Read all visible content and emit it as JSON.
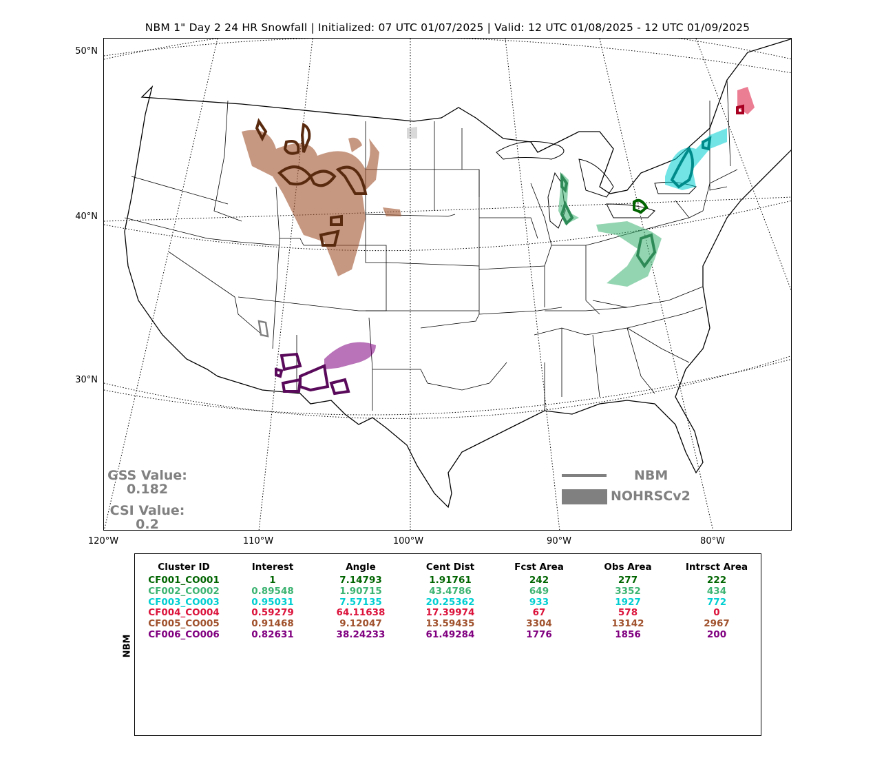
{
  "title": "NBM 1\" Day 2 24 HR Snowfall | Initialized: 07 UTC 01/07/2025 | Valid: 12 UTC 01/08/2025 - 12 UTC 01/09/2025",
  "lat_labels": [
    "50°N",
    "40°N",
    "30°N"
  ],
  "lon_labels": [
    "120°W",
    "110°W",
    "100°W",
    "90°W",
    "80°W"
  ],
  "scores": {
    "gss_label": "GSS Value:",
    "gss_value": "0.182",
    "csi_label": "CSI Value:",
    "csi_value": "0.2"
  },
  "legend": {
    "forecast_label": "NBM",
    "observed_label": "NOHRSCv2",
    "color": "#808080"
  },
  "table": {
    "side_label": "NBM",
    "headers": [
      "Cluster ID",
      "Interest",
      "Angle",
      "Cent Dist",
      "Fcst Area",
      "Obs Area",
      "Intrsct Area"
    ],
    "rows": [
      {
        "color": "#006400",
        "cells": [
          "CF001_CO001",
          "1",
          "7.14793",
          "1.91761",
          "242",
          "277",
          "222"
        ]
      },
      {
        "color": "#3cb371",
        "cells": [
          "CF002_CO002",
          "0.89548",
          "1.90715",
          "43.4786",
          "649",
          "3352",
          "434"
        ]
      },
      {
        "color": "#00ced1",
        "cells": [
          "CF003_CO003",
          "0.95031",
          "7.57135",
          "20.25362",
          "933",
          "1927",
          "772"
        ]
      },
      {
        "color": "#dc143c",
        "cells": [
          "CF004_CO004",
          "0.59279",
          "64.11638",
          "17.39974",
          "67",
          "578",
          "0"
        ]
      },
      {
        "color": "#a0522d",
        "cells": [
          "CF005_CO005",
          "0.91468",
          "9.12047",
          "13.59435",
          "3304",
          "13142",
          "2967"
        ]
      },
      {
        "color": "#800080",
        "cells": [
          "CF006_CO006",
          "0.82631",
          "38.24233",
          "61.49284",
          "1776",
          "1856",
          "200"
        ]
      }
    ]
  },
  "cluster_colors": {
    "dark_green": "#006400",
    "medium_green": "#3cb371",
    "cyan": "#00ced1",
    "red": "#dc143c",
    "brown": "#a0522d",
    "purple": "#800080",
    "gray": "#808080"
  }
}
